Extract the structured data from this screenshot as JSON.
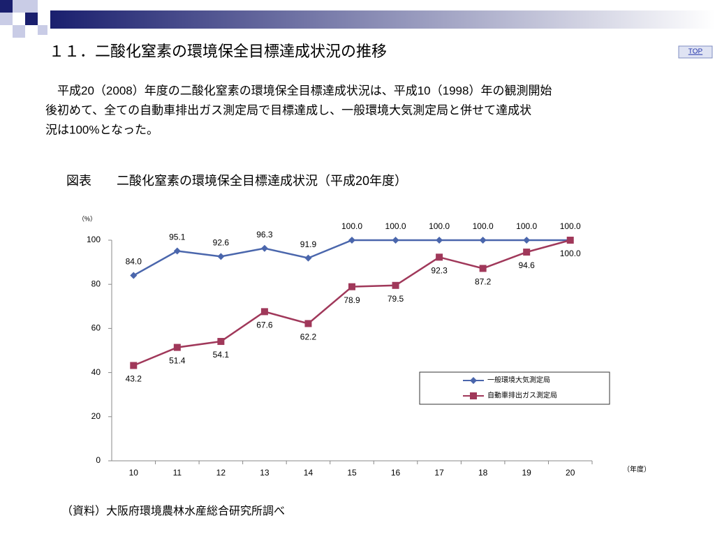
{
  "header": {
    "title": "１１．二酸化窒素の環境保全目標達成状況の推移",
    "top_link": "TOP"
  },
  "paragraph": [
    "　平成20（2008）年度の二酸化窒素の環境保全目標達成状況は、平成10（1998）年の観測開始",
    "後初めて、全ての自動車排出ガス測定局で目標達成し、一般環境大気測定局と併せて達成状",
    "況は100%となった。"
  ],
  "figure_caption": "図表　　二酸化窒素の環境保全目標達成状況（平成20年度）",
  "source": "（資料）大阪府環境農林水産総合研究所調べ",
  "chart_data": {
    "type": "line",
    "y_unit": "（%）",
    "x_unit": "（年度）",
    "categories": [
      "10",
      "11",
      "12",
      "13",
      "14",
      "15",
      "16",
      "17",
      "18",
      "19",
      "20"
    ],
    "series": [
      {
        "name": "一般環境大気測定局",
        "color": "#4a66ac",
        "marker": "diamond",
        "values": [
          84.0,
          95.1,
          92.6,
          96.3,
          91.9,
          100,
          100,
          100,
          100,
          100,
          100
        ],
        "value_labels": [
          "84.0",
          "95.1",
          "92.6",
          "96.3",
          "91.9",
          "100.0",
          "100.0",
          "100.0",
          "100.0",
          "100.0",
          "100.0"
        ]
      },
      {
        "name": "自動車排出ガス測定局",
        "color": "#a0385a",
        "marker": "square",
        "values": [
          43.2,
          51.4,
          54.1,
          67.6,
          62.2,
          78.9,
          79.5,
          92.3,
          87.2,
          94.6,
          100
        ],
        "value_labels": [
          "43.2",
          "51.4",
          "54.1",
          "67.6",
          "62.2",
          "78.9",
          "79.5",
          "92.3",
          "87.2",
          "94.6",
          "100.0"
        ]
      }
    ],
    "ylim": [
      0,
      100
    ],
    "yticks": [
      0,
      20,
      40,
      60,
      80,
      100
    ],
    "grid": false
  }
}
